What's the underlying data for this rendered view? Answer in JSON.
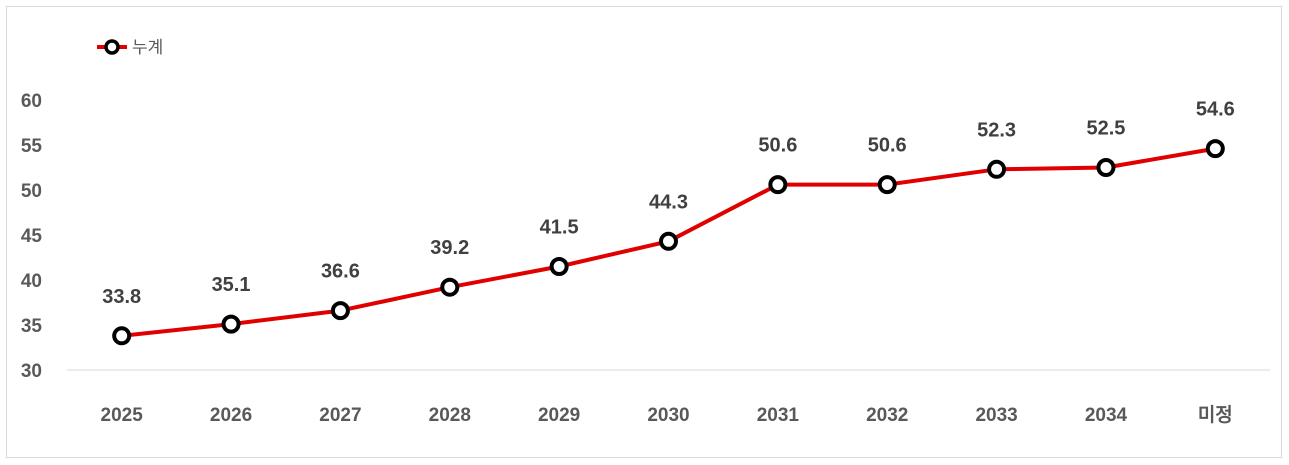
{
  "chart_data": {
    "type": "line",
    "categories": [
      "2025",
      "2026",
      "2027",
      "2028",
      "2029",
      "2030",
      "2031",
      "2032",
      "2033",
      "2034",
      "미정"
    ],
    "series": [
      {
        "name": "누계",
        "values": [
          33.8,
          35.1,
          36.6,
          39.2,
          41.5,
          44.3,
          50.6,
          50.6,
          52.3,
          52.5,
          54.6
        ],
        "color": "#e00000"
      }
    ],
    "data_labels": [
      "33.8",
      "35.1",
      "36.6",
      "39.2",
      "41.5",
      "44.3",
      "50.6",
      "50.6",
      "52.3",
      "52.5",
      "54.6"
    ],
    "y_ticks": [
      "30",
      "35",
      "40",
      "45",
      "50",
      "55",
      "60"
    ],
    "ylim": [
      30,
      60
    ],
    "grid": false,
    "legend": "top-left",
    "marker": "hollow-circle"
  }
}
